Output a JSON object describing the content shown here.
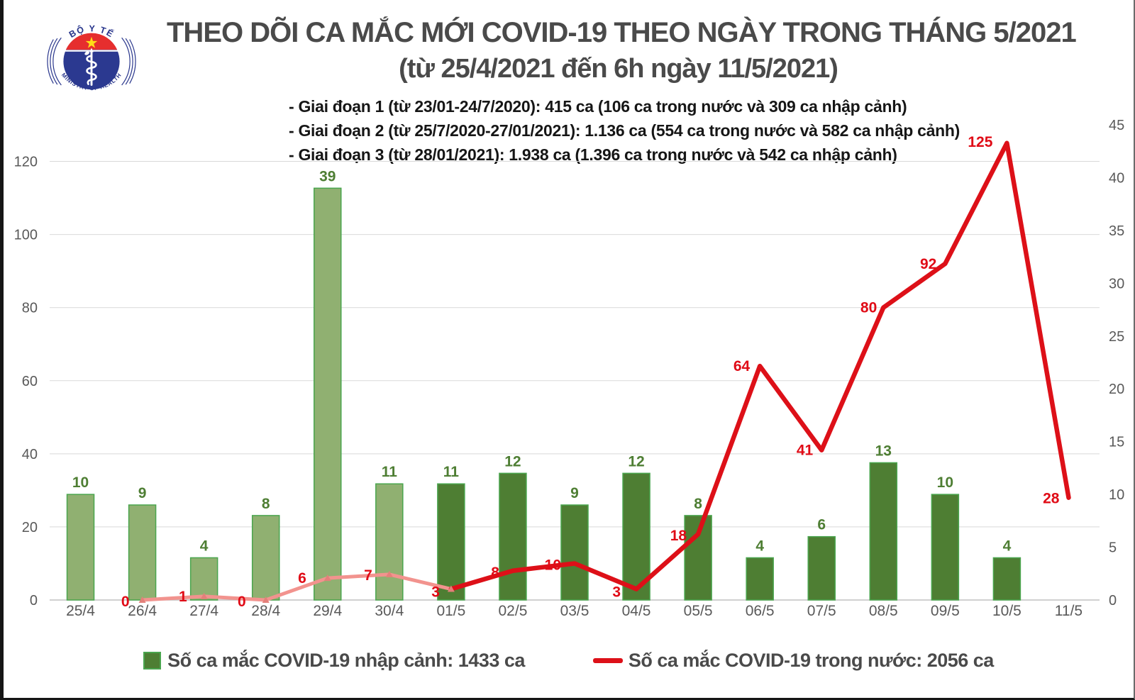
{
  "logo": {
    "top_text": "BỘ Y TẾ",
    "bottom_text": "MINISTRY OF HEALTH"
  },
  "title": "THEO DÕI CA MẮC MỚI COVID-19 THEO NGÀY TRONG THÁNG 5/2021",
  "subtitle": "(từ 25/4/2021 đến 6h ngày 11/5/2021)",
  "phases": [
    "- Giai đoạn 1 (từ 23/01-24/7/2020): 415 ca (106 ca trong nước và 309 ca nhập cảnh)",
    "- Giai đoạn 2 (từ 25/7/2020-27/01/2021): 1.136 ca (554 ca trong nước và 582 ca nhập cảnh)",
    "- Giai đoạn 3 (từ 28/01/2021): 1.938 ca (1.396 ca trong nước và 542 ca nhập cảnh)"
  ],
  "chart_data": {
    "type": "combo-bar-line",
    "categories": [
      "25/4",
      "26/4",
      "27/4",
      "28/4",
      "29/4",
      "30/4",
      "01/5",
      "02/5",
      "03/5",
      "04/5",
      "05/5",
      "06/5",
      "07/5",
      "08/5",
      "09/5",
      "10/5",
      "11/5"
    ],
    "series": [
      {
        "name": "Số ca mắc COVID-19 nhập cảnh",
        "type": "bar",
        "axis": "right",
        "values": [
          10,
          9,
          4,
          8,
          39,
          11,
          11,
          12,
          9,
          12,
          8,
          4,
          6,
          13,
          10,
          4,
          null
        ],
        "fill_light": "#90b071",
        "fill_dark": "#4e7e33",
        "stroke": "#4aa54e",
        "dark_from_index": 6,
        "label_color": "#4e7e33"
      },
      {
        "name": "Số ca mắc COVID-19 trong nước",
        "type": "line",
        "axis": "left",
        "values": [
          null,
          0,
          1,
          0,
          6,
          7,
          3,
          8,
          10,
          3,
          18,
          64,
          41,
          80,
          92,
          125,
          28
        ],
        "color": "#dd1018",
        "faded_color": "#f2938e",
        "faded_until_index": 6,
        "marker_color": "#e4807a",
        "label_color": "#e00b16"
      }
    ],
    "axes": {
      "left": {
        "min": 0,
        "max": 130,
        "ticks": [
          0,
          20,
          40,
          60,
          80,
          100,
          120
        ]
      },
      "right": {
        "min": 0,
        "max": 45,
        "ticks": [
          0,
          5,
          10,
          15,
          20,
          25,
          30,
          35,
          40,
          45
        ]
      }
    },
    "grid": true,
    "legend_position": "bottom",
    "grid_color": "#d9d9d9",
    "baseline_color": "#c2c2c2",
    "tick_label_color": "#595959"
  },
  "legend": [
    {
      "label": "Số ca mắc COVID-19 nhập cảnh: 1433 ca"
    },
    {
      "label": "Số ca mắc COVID-19 trong nước: 2056 ca"
    }
  ]
}
